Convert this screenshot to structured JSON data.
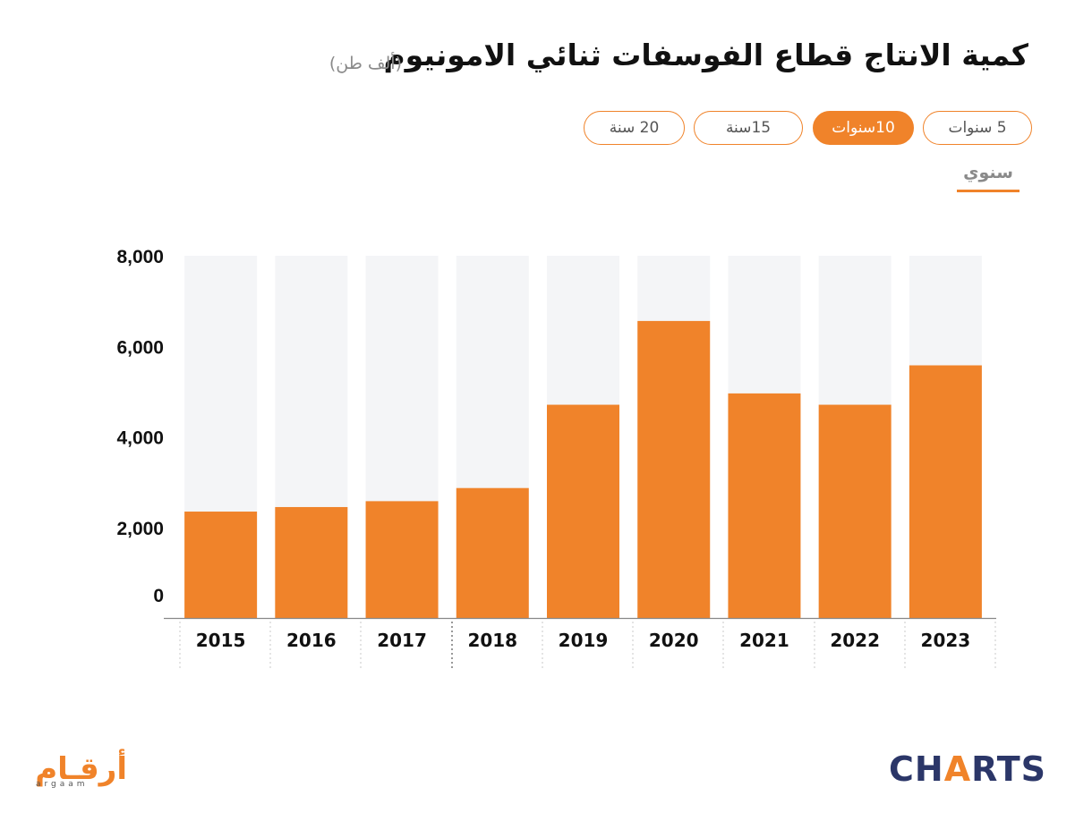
{
  "title": "كمية الانتاج قطاع الفوسفات ثنائي الامونيوم",
  "unit": "(ألف طن)",
  "range_buttons": [
    {
      "label": "5 سنوات",
      "active": false
    },
    {
      "label": "10سنوات",
      "active": true
    },
    {
      "label": "15سنة",
      "active": false
    },
    {
      "label": "20 سنة",
      "active": false
    }
  ],
  "period_tab": "سنوي",
  "colors": {
    "accent": "#f0832a",
    "bar_background": "#f4f5f7",
    "brand_dark": "#2b3668"
  },
  "chart_data": {
    "type": "bar",
    "categories": [
      "2015",
      "2016",
      "2017",
      "2018",
      "2019",
      "2020",
      "2021",
      "2022",
      "2023"
    ],
    "values": [
      2350,
      2450,
      2580,
      2870,
      4710,
      6560,
      4960,
      4710,
      5580
    ],
    "ylim": [
      0,
      8000
    ],
    "yticks": [
      "0",
      "2,000",
      "4,000",
      "6,000",
      "8,000"
    ],
    "title": "كمية الانتاج قطاع الفوسفات ثنائي الامونيوم",
    "xlabel": "",
    "ylabel": "",
    "grid": false
  },
  "logos": {
    "arqaam_ar": "أرقـام",
    "arqaam_en": "argaam",
    "charts_a": "CH",
    "charts_bolt": "A",
    "charts_b": "RTS"
  }
}
